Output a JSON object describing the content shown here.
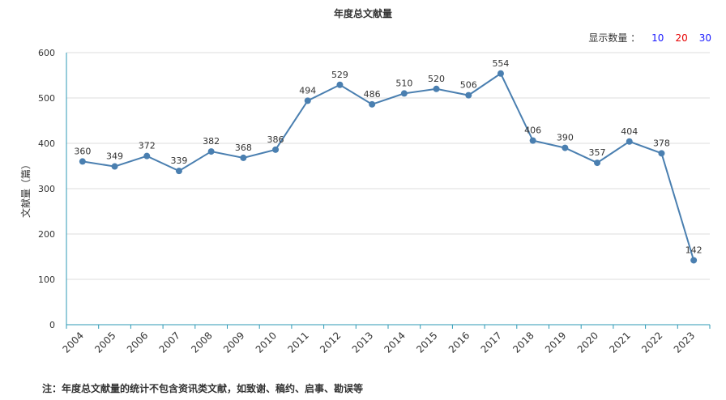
{
  "chart_data": {
    "type": "line",
    "title": "年度总文献量",
    "ylabel": "文献量（篇）",
    "xlabel": "",
    "x": [
      "2004",
      "2005",
      "2006",
      "2007",
      "2008",
      "2009",
      "2010",
      "2011",
      "2012",
      "2013",
      "2014",
      "2015",
      "2016",
      "2017",
      "2018",
      "2019",
      "2020",
      "2021",
      "2022",
      "2023"
    ],
    "series": [
      {
        "values": [
          360,
          349,
          372,
          339,
          382,
          368,
          386,
          494,
          529,
          486,
          510,
          520,
          506,
          554,
          406,
          390,
          357,
          404,
          378,
          142
        ]
      }
    ],
    "ylim": [
      0,
      600
    ],
    "yticks": [
      0,
      100,
      200,
      300,
      400,
      500,
      600
    ],
    "grid": true,
    "line_color": "#4a7fb0"
  },
  "display_count": {
    "label": "显示数量 ：",
    "options": [
      {
        "text": "10",
        "color": "#1a1aff"
      },
      {
        "text": "20",
        "color": "#e60000"
      },
      {
        "text": "30",
        "color": "#1a1aff"
      }
    ]
  },
  "footnote": "注：年度总文献量的统计不包含资讯类文献，如致谢、稿约、启事、勘误等"
}
